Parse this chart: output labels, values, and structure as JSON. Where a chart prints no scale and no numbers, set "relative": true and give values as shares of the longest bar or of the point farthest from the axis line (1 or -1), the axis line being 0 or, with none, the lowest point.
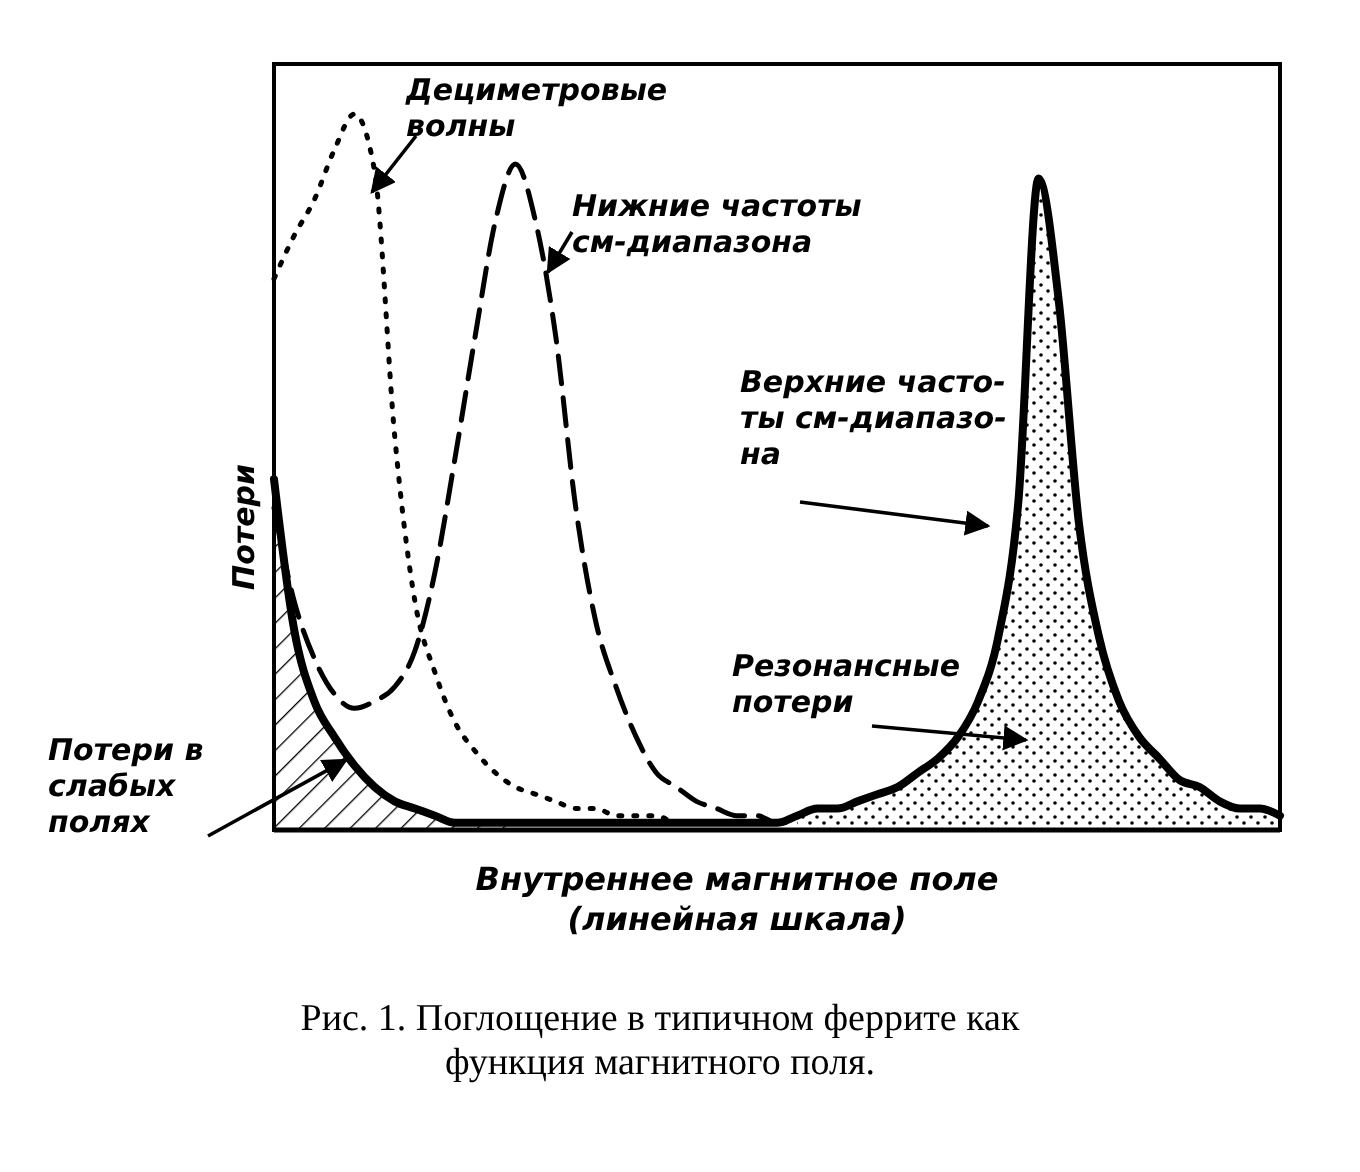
{
  "chart_data": {
    "type": "line",
    "relative": true,
    "xlabel": "Внутреннее магнитное поле\n(линейная шкала)",
    "ylabel": "Потери",
    "categories": [
      null,
      null,
      null,
      null,
      null,
      null,
      null,
      null,
      null,
      null,
      null,
      null,
      null,
      null,
      null,
      null,
      null,
      null,
      null,
      null,
      null,
      null,
      null,
      null,
      null,
      null,
      null,
      null,
      null,
      null,
      null,
      null,
      null,
      null,
      null,
      null,
      null,
      null,
      null,
      null,
      null,
      null,
      null,
      null,
      null,
      null,
      null,
      null,
      null,
      null,
      null
    ],
    "series": [
      {
        "name": "Потери в\nслабых\nполях",
        "type": "area",
        "color": "#000000",
        "values": [
          0.49,
          0.28,
          0.18,
          0.13,
          0.09,
          0.06,
          0.04,
          0.03,
          0.02,
          0.01,
          0.01,
          0.01,
          0.01,
          null,
          null,
          null,
          null,
          null,
          null,
          null,
          null,
          null,
          null,
          null,
          null,
          null,
          null,
          null,
          null,
          null,
          null,
          null,
          null,
          null,
          null,
          null,
          null,
          null,
          null,
          null,
          null,
          null,
          null,
          null,
          null,
          null,
          null,
          null,
          null,
          null,
          null
        ]
      },
      {
        "name": "Резонансные\nпотери",
        "type": "area",
        "color": "#000000",
        "values": [
          null,
          null,
          null,
          null,
          null,
          null,
          null,
          null,
          null,
          null,
          null,
          null,
          null,
          null,
          null,
          null,
          null,
          null,
          null,
          null,
          null,
          null,
          null,
          null,
          null,
          null,
          0.02,
          0.03,
          0.03,
          0.04,
          0.05,
          0.06,
          0.08,
          0.1,
          0.13,
          0.18,
          0.27,
          0.46,
          0.91,
          0.74,
          0.43,
          0.27,
          0.18,
          0.13,
          0.1,
          0.07,
          0.06,
          0.04,
          0.03,
          0.03,
          0.02
        ]
      },
      {
        "name": "Дециметровые\nволны",
        "line_style": "dotted",
        "color": "#000000",
        "values": [
          0.77,
          0.83,
          0.88,
          0.95,
          1,
          0.92,
          0.55,
          0.32,
          0.22,
          0.15,
          0.11,
          0.08,
          0.06,
          0.05,
          0.04,
          0.03,
          0.03,
          0.02,
          0.02,
          0.02,
          0.01,
          0.01,
          0.01,
          null,
          null,
          null,
          null,
          null,
          null,
          null,
          null,
          null,
          null,
          null,
          null,
          null,
          null,
          null,
          null,
          null,
          null,
          null,
          null,
          null,
          null,
          null,
          null,
          null,
          null,
          null,
          null
        ]
      },
      {
        "name": "Нижние частоты\nсм-диапазона",
        "line_style": "dashed",
        "color": "#000000",
        "values": [
          0.45,
          0.32,
          0.24,
          0.19,
          0.17,
          0.18,
          0.2,
          0.25,
          0.36,
          0.52,
          0.69,
          0.85,
          0.93,
          0.85,
          0.69,
          0.45,
          0.29,
          0.2,
          0.13,
          0.08,
          0.06,
          0.04,
          0.03,
          0.02,
          0.02,
          0.01,
          0.01,
          null,
          null,
          null,
          null,
          null,
          null,
          null,
          null,
          null,
          null,
          null,
          null,
          null,
          null,
          null,
          null,
          null,
          null,
          null,
          null,
          null,
          null,
          null,
          null
        ]
      },
      {
        "name": "Верхние часто-\nты см-диапазо-\nна",
        "line_style": "solid",
        "color": "#000000",
        "values": [
          0.49,
          0.28,
          0.18,
          0.13,
          0.09,
          0.06,
          0.04,
          0.03,
          0.02,
          0.01,
          0.01,
          0.01,
          0.01,
          0.01,
          0.01,
          0.01,
          0.01,
          0.01,
          0.01,
          0.01,
          0.01,
          0.01,
          0.01,
          0.01,
          0.01,
          0.01,
          0.02,
          0.03,
          0.03,
          0.04,
          0.05,
          0.06,
          0.08,
          0.1,
          0.13,
          0.18,
          0.27,
          0.46,
          0.91,
          0.74,
          0.43,
          0.27,
          0.18,
          0.13,
          0.1,
          0.07,
          0.06,
          0.04,
          0.03,
          0.03,
          0.02
        ]
      }
    ],
    "annotations": [
      "Рис. 1. Поглощение в типичном феррите как функция магнитного поля."
    ]
  }
}
